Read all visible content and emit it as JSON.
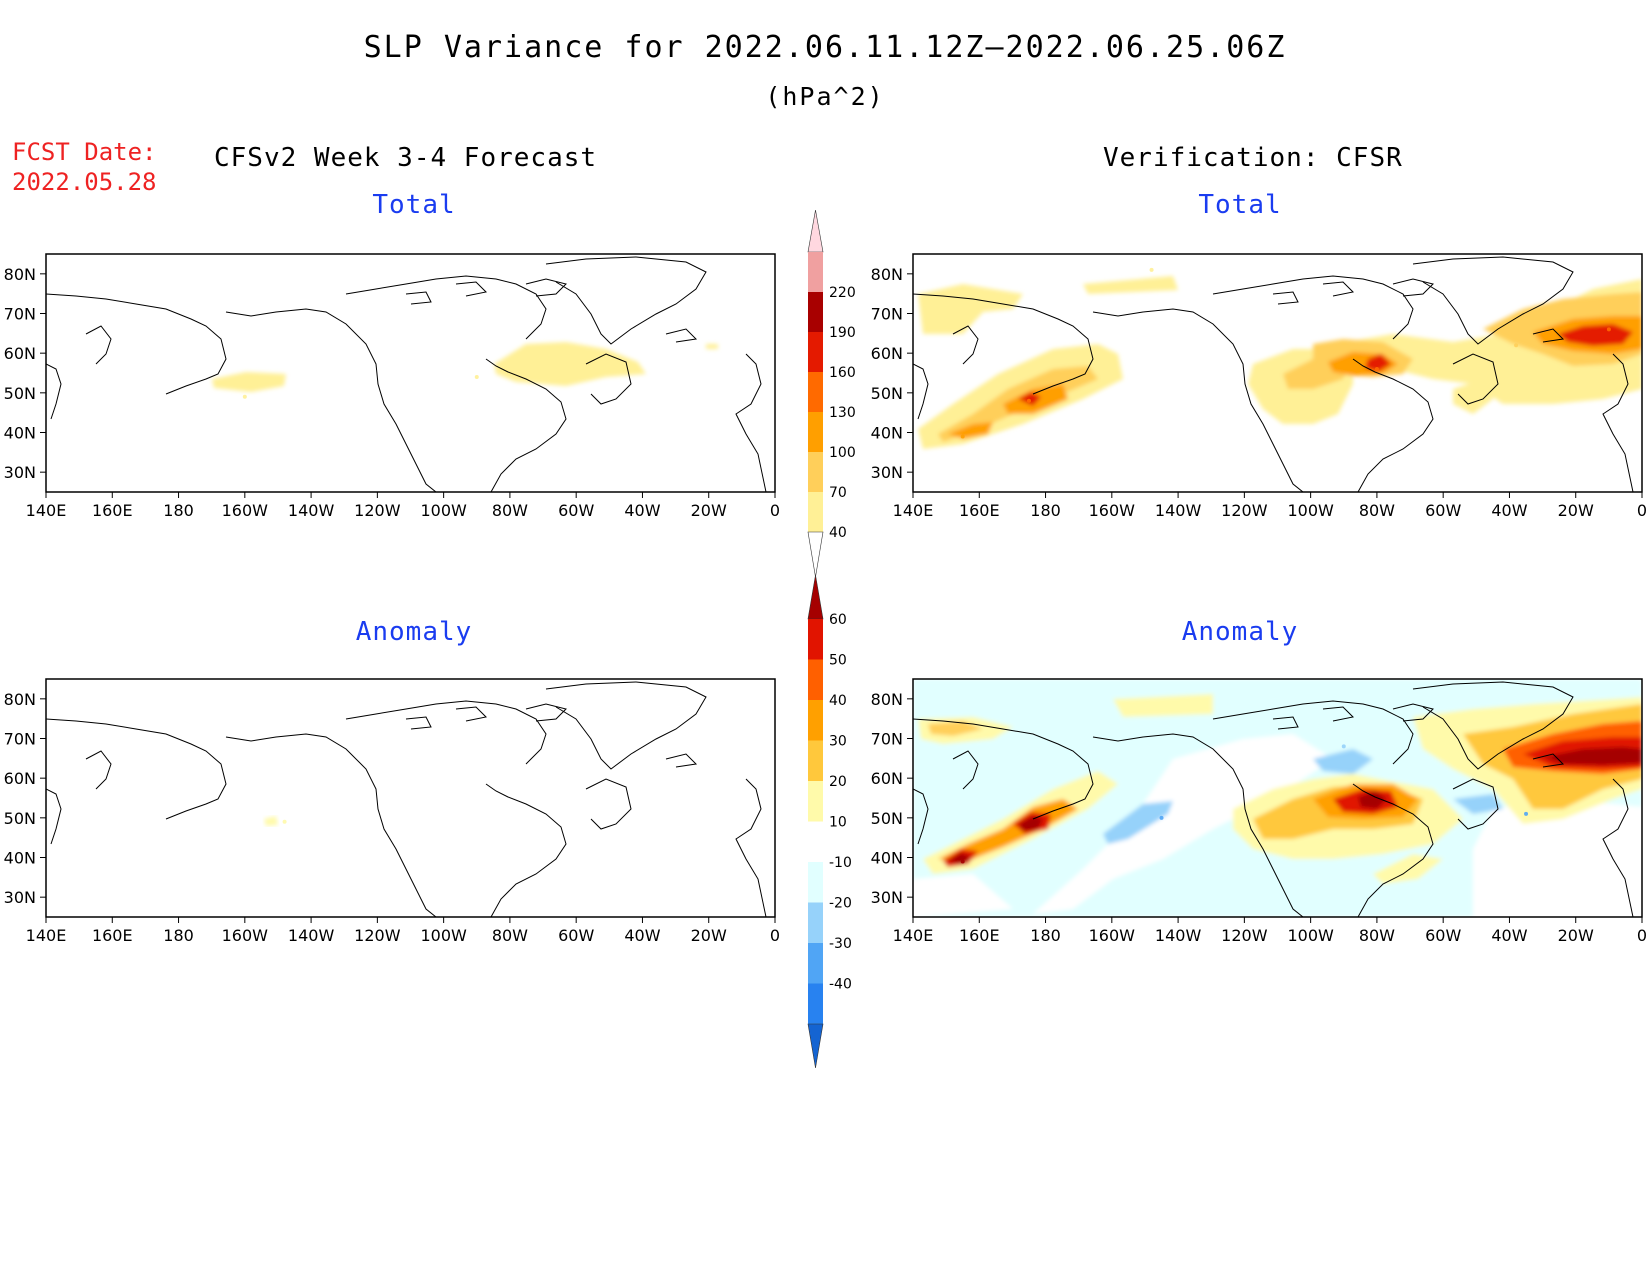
{
  "header": {
    "title": "SLP Variance for 2022.06.11.12Z—2022.06.25.06Z",
    "units": "(hPa^2)",
    "fcst_label": "FCST Date:",
    "fcst_date": "2022.05.28",
    "left_heading": "CFSv2 Week 3-4 Forecast",
    "right_heading": "Verification: CFSR"
  },
  "panels": {
    "forecast_total": "Total",
    "verification_total": "Total",
    "forecast_anomaly": "Anomaly",
    "verification_anomaly": "Anomaly"
  },
  "axes": {
    "lon_ticks": [
      "140E",
      "160E",
      "180",
      "160W",
      "140W",
      "120W",
      "100W",
      "80W",
      "60W",
      "40W",
      "20W",
      "0"
    ],
    "lat_ticks": [
      "80N",
      "70N",
      "60N",
      "50N",
      "40N",
      "30N"
    ],
    "lon_range": [
      140,
      360
    ],
    "lat_range": [
      25,
      85
    ]
  },
  "colorbar_total": {
    "levels": [
      "40",
      "70",
      "100",
      "130",
      "160",
      "190",
      "220"
    ],
    "colors": [
      "#fff096",
      "#ffcf5a",
      "#ff9f00",
      "#ff6a00",
      "#e41a00",
      "#a80000",
      "#f0a0a0",
      "#ffd8e0"
    ]
  },
  "colorbar_anomaly": {
    "levels": [
      "-40",
      "-30",
      "-20",
      "-10",
      "10",
      "20",
      "30",
      "40",
      "50",
      "60"
    ],
    "colors": [
      "#1464d2",
      "#2882f0",
      "#50a5f5",
      "#96d2fa",
      "#e1ffff",
      "#ffffff",
      "#fffaaa",
      "#ffc83c",
      "#ffa000",
      "#ff6000",
      "#e11400",
      "#a50000"
    ]
  },
  "chart_data": [
    {
      "type": "heatmap",
      "title": "Total",
      "xlabel": "",
      "ylabel": "",
      "xlim": [
        140,
        360
      ],
      "ylim": [
        25,
        85
      ],
      "features": [
        {
          "lon": 200,
          "lat": 49,
          "level": 40
        },
        {
          "lon": 270,
          "lat": 54,
          "level": 40
        },
        {
          "lon": 290,
          "lat": 54,
          "level": 40
        }
      ]
    },
    {
      "type": "heatmap",
      "title": "Total",
      "xlabel": "",
      "ylabel": "",
      "xlim": [
        140,
        360
      ],
      "ylim": [
        25,
        85
      ],
      "features": [
        {
          "lon": 155,
          "lat": 39,
          "level": 100
        },
        {
          "lon": 175,
          "lat": 48,
          "level": 130
        },
        {
          "lon": 280,
          "lat": 56,
          "level": 130
        },
        {
          "lon": 350,
          "lat": 66,
          "level": 130
        },
        {
          "lon": 322,
          "lat": 62,
          "level": 70
        },
        {
          "lon": 155,
          "lat": 76,
          "level": 40
        },
        {
          "lon": 212,
          "lat": 81,
          "level": 40
        }
      ]
    },
    {
      "type": "heatmap",
      "title": "Anomaly",
      "xlabel": "",
      "ylabel": "",
      "xlim": [
        140,
        360
      ],
      "ylim": [
        25,
        85
      ],
      "features": [
        {
          "lon": 212,
          "lat": 49,
          "level": 10
        }
      ]
    },
    {
      "type": "heatmap",
      "title": "Anomaly",
      "xlabel": "",
      "ylabel": "",
      "xlim": [
        140,
        360
      ],
      "ylim": [
        25,
        85
      ],
      "features": [
        {
          "lon": 155,
          "lat": 39,
          "level": 60
        },
        {
          "lon": 175,
          "lat": 48,
          "level": 60
        },
        {
          "lon": 280,
          "lat": 55,
          "level": 60
        },
        {
          "lon": 345,
          "lat": 66,
          "level": 60
        },
        {
          "lon": 215,
          "lat": 50,
          "level": -20
        },
        {
          "lon": 325,
          "lat": 51,
          "level": -20
        },
        {
          "lon": 270,
          "lat": 68,
          "level": -10
        }
      ]
    }
  ]
}
